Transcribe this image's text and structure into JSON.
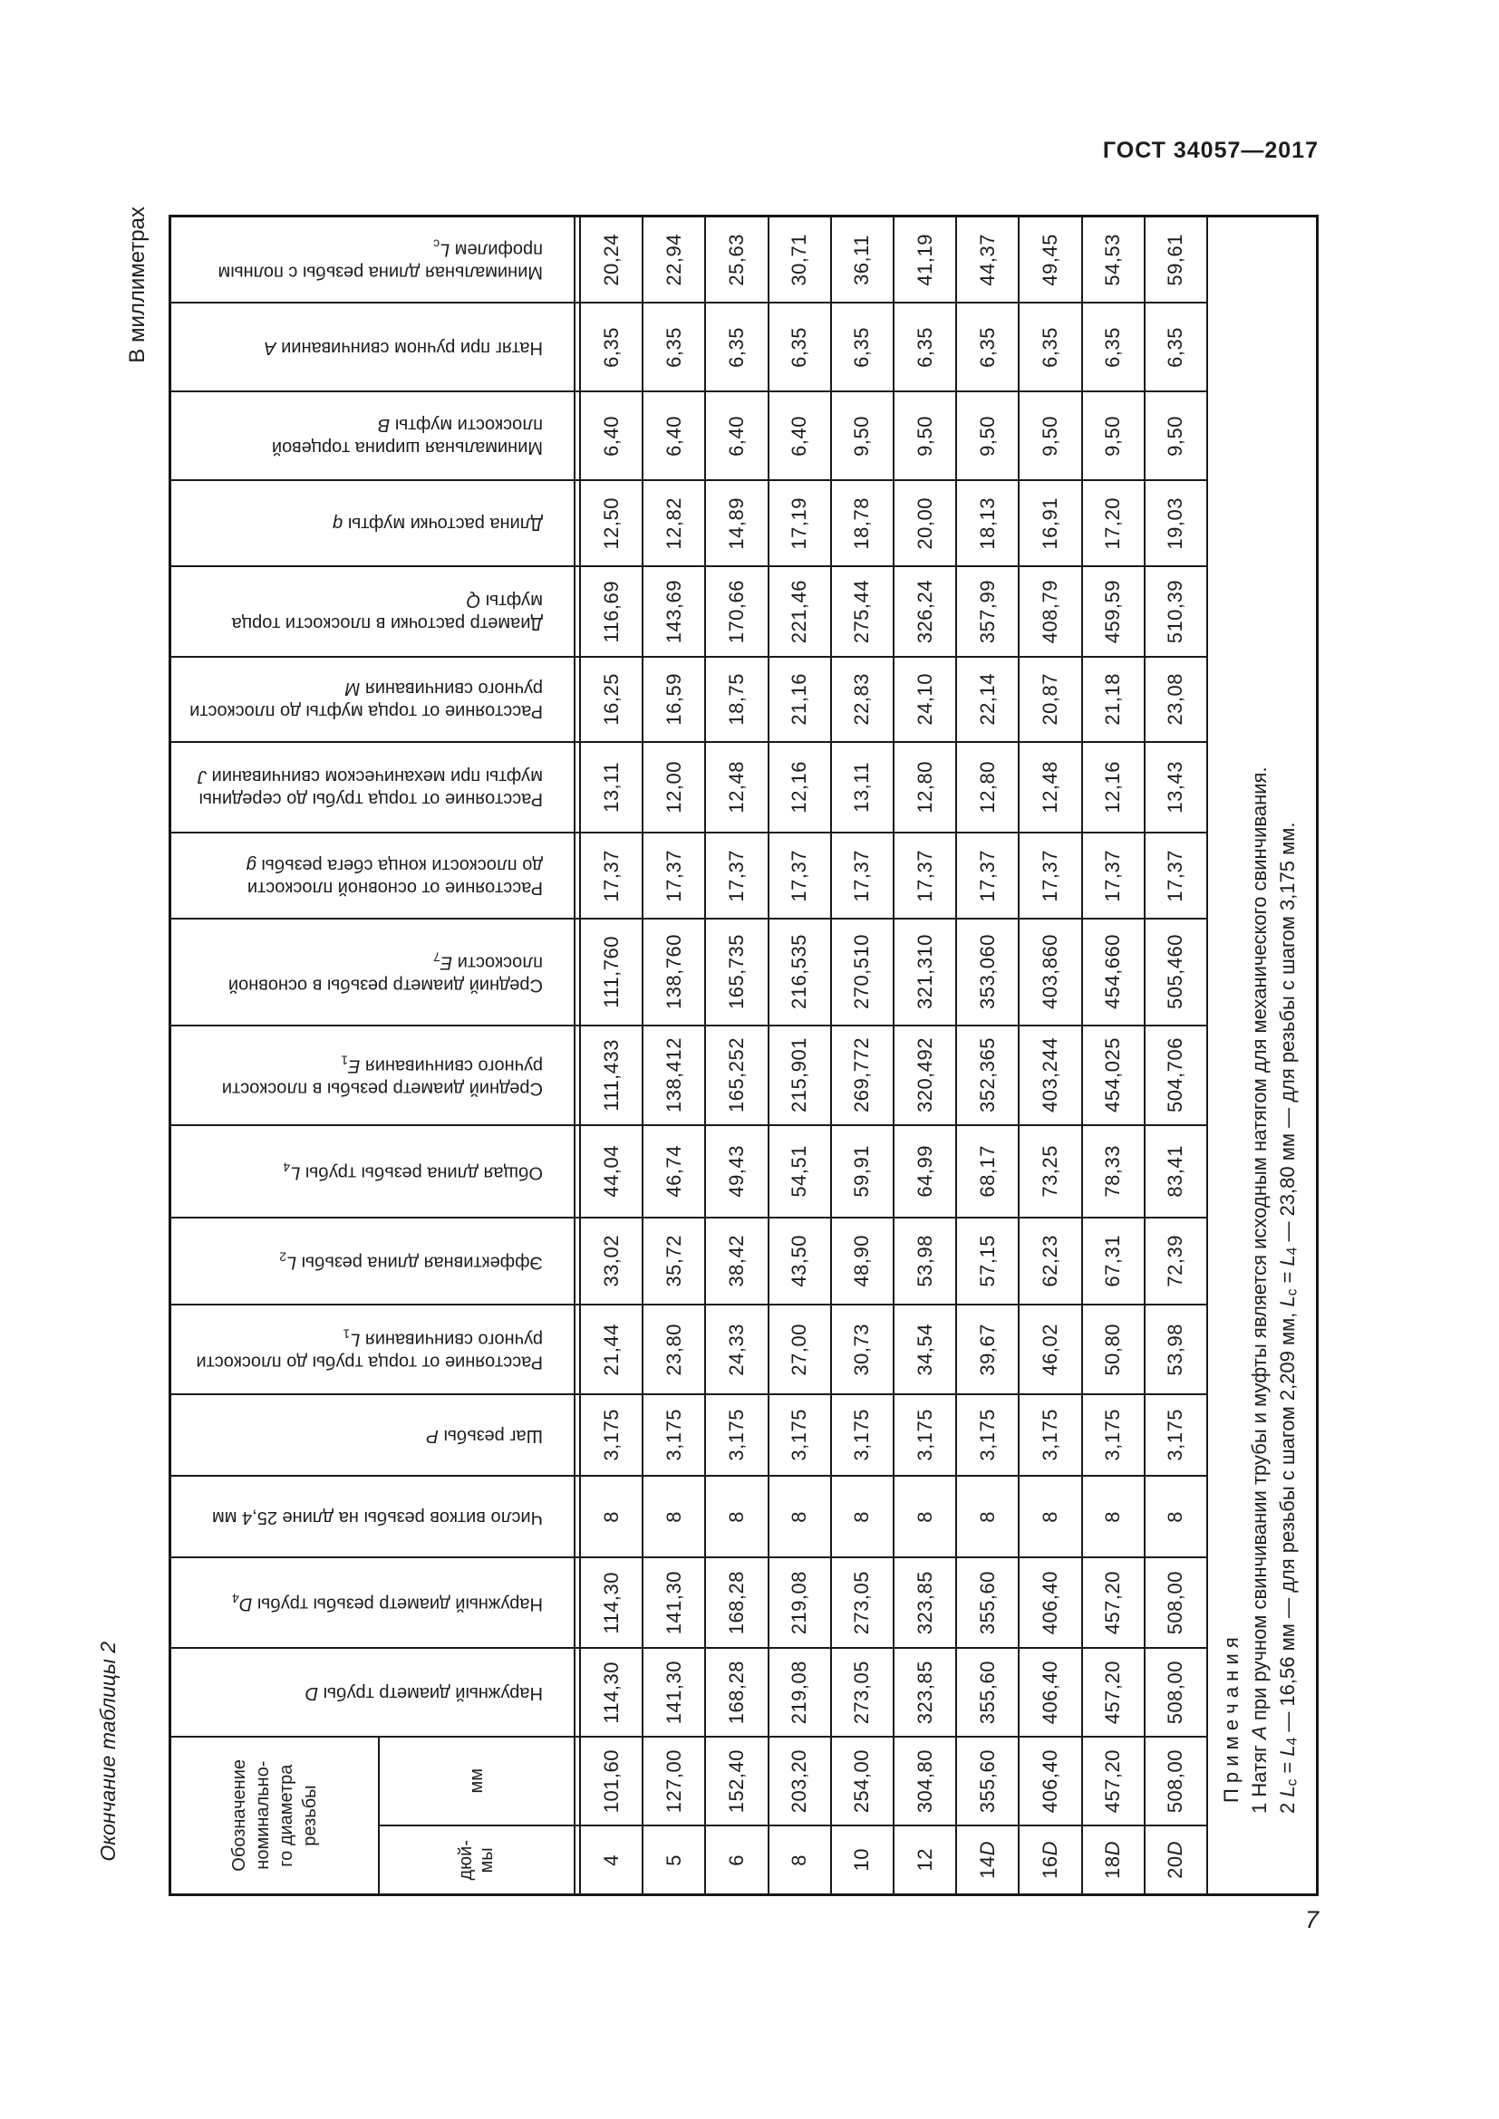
{
  "page": {
    "doc_code": "ГОСТ 34057—2017",
    "page_number": "7",
    "units_label": "В миллиметрах",
    "continuation_label": "Окончание таблицы 2"
  },
  "table": {
    "size_header": {
      "title": "Обозначение\nноминально-\nго диаметра\nрезьбы",
      "mm": "мм",
      "inch": "дюй-\nмы"
    },
    "sizes_inch": [
      "4",
      "5",
      "6",
      "8",
      "10",
      "12",
      "14D",
      "16D",
      "18D",
      "20D"
    ],
    "sizes_mm": [
      "101,60",
      "127,00",
      "152,40",
      "203,20",
      "254,00",
      "304,80",
      "355,60",
      "406,40",
      "457,20",
      "508,00"
    ],
    "parameters": [
      {
        "label": "Минимальная длина резьбы с полным\nпрофилем",
        "symbol": "L",
        "sub": "с",
        "values": [
          "20,24",
          "22,94",
          "25,63",
          "30,71",
          "36,11",
          "41,19",
          "44,37",
          "49,45",
          "54,53",
          "59,61"
        ]
      },
      {
        "label": "Натяг при ручном свинчивании",
        "symbol": "A",
        "sub": "",
        "values": [
          "6,35",
          "6,35",
          "6,35",
          "6,35",
          "6,35",
          "6,35",
          "6,35",
          "6,35",
          "6,35",
          "6,35"
        ]
      },
      {
        "label": "Минимальная ширина торцевой\nплоскости муфты",
        "symbol": "B",
        "sub": "",
        "values": [
          "6,40",
          "6,40",
          "6,40",
          "6,40",
          "9,50",
          "9,50",
          "9,50",
          "9,50",
          "9,50",
          "9,50"
        ]
      },
      {
        "label": "Длина расточки муфты",
        "symbol": "q",
        "sub": "",
        "values": [
          "12,50",
          "12,82",
          "14,89",
          "17,19",
          "18,78",
          "20,00",
          "18,13",
          "16,91",
          "17,20",
          "19,03"
        ]
      },
      {
        "label": "Диаметр расточки в плоскости торца\nмуфты",
        "symbol": "Q",
        "sub": "",
        "values": [
          "116,69",
          "143,69",
          "170,66",
          "221,46",
          "275,44",
          "326,24",
          "357,99",
          "408,79",
          "459,59",
          "510,39"
        ]
      },
      {
        "label": "Расстояние от торца муфты до плоскости\nручного свинчивания",
        "symbol": "M",
        "sub": "",
        "values": [
          "16,25",
          "16,59",
          "18,75",
          "21,16",
          "22,83",
          "24,10",
          "22,14",
          "20,87",
          "21,18",
          "23,08"
        ]
      },
      {
        "label": "Расстояние от торца трубы до середины\nмуфты при механическом свинчивании",
        "symbol": "J",
        "sub": "",
        "values": [
          "13,11",
          "12,00",
          "12,48",
          "12,16",
          "13,11",
          "12,80",
          "12,80",
          "12,48",
          "12,16",
          "13,43"
        ]
      },
      {
        "label": "Расстояние от основной плоскости\nдо плоскости конца сбега резьбы",
        "symbol": "g",
        "sub": "",
        "values": [
          "17,37",
          "17,37",
          "17,37",
          "17,37",
          "17,37",
          "17,37",
          "17,37",
          "17,37",
          "17,37",
          "17,37"
        ]
      },
      {
        "label": "Средний диаметр резьбы в основной\nплоскости",
        "symbol": "E",
        "sub": "7",
        "values": [
          "111,760",
          "138,760",
          "165,735",
          "216,535",
          "270,510",
          "321,310",
          "353,060",
          "403,860",
          "454,660",
          "505,460"
        ]
      },
      {
        "label": "Средний диаметр резьбы в плоскости\nручного свинчивания",
        "symbol": "E",
        "sub": "1",
        "values": [
          "111,433",
          "138,412",
          "165,252",
          "215,901",
          "269,772",
          "320,492",
          "352,365",
          "403,244",
          "454,025",
          "504,706"
        ]
      },
      {
        "label": "Общая длина резьбы трубы",
        "symbol": "L",
        "sub": "4",
        "values": [
          "44,04",
          "46,74",
          "49,43",
          "54,51",
          "59,91",
          "64,99",
          "68,17",
          "73,25",
          "78,33",
          "83,41"
        ]
      },
      {
        "label": "Эффективная длина резьбы",
        "symbol": "L",
        "sub": "2",
        "values": [
          "33,02",
          "35,72",
          "38,42",
          "43,50",
          "48,90",
          "53,98",
          "57,15",
          "62,23",
          "67,31",
          "72,39"
        ]
      },
      {
        "label": "Расстояние от торца трубы до плоскости\nручного свинчивания",
        "symbol": "L",
        "sub": "1",
        "values": [
          "21,44",
          "23,80",
          "24,33",
          "27,00",
          "30,73",
          "34,54",
          "39,67",
          "46,02",
          "50,80",
          "53,98"
        ]
      },
      {
        "label": "Шаг резьбы",
        "symbol": "P",
        "sub": "",
        "values": [
          "3,175",
          "3,175",
          "3,175",
          "3,175",
          "3,175",
          "3,175",
          "3,175",
          "3,175",
          "3,175",
          "3,175"
        ]
      },
      {
        "label": "Число витков резьбы на длине 25,4 мм",
        "symbol": "",
        "sub": "",
        "values": [
          "8",
          "8",
          "8",
          "8",
          "8",
          "8",
          "8",
          "8",
          "8",
          "8"
        ]
      },
      {
        "label": "Наружный диаметр резьбы трубы",
        "symbol": "D",
        "sub": "4",
        "values": [
          "114,30",
          "141,30",
          "168,28",
          "219,08",
          "273,05",
          "323,85",
          "355,60",
          "406,40",
          "457,20",
          "508,00"
        ]
      },
      {
        "label": "Наружный диаметр трубы",
        "symbol": "D",
        "sub": "",
        "values": [
          "114,30",
          "141,30",
          "168,28",
          "219,08",
          "273,05",
          "323,85",
          "355,60",
          "406,40",
          "457,20",
          "508,00"
        ]
      }
    ],
    "notes": {
      "heading": "П р и м е ч а н и я",
      "items": [
        "1 Натяг *A* при ручном свинчивании трубы и муфты является исходным натягом для механического свинчивания.",
        "2 *L*_с = *L*_4 — 16,56 мм — для резьбы с шагом 2,209 мм, *L*_с = *L*_4 — 23,80 мм — для резьбы с шагом 3,175 мм."
      ]
    }
  }
}
